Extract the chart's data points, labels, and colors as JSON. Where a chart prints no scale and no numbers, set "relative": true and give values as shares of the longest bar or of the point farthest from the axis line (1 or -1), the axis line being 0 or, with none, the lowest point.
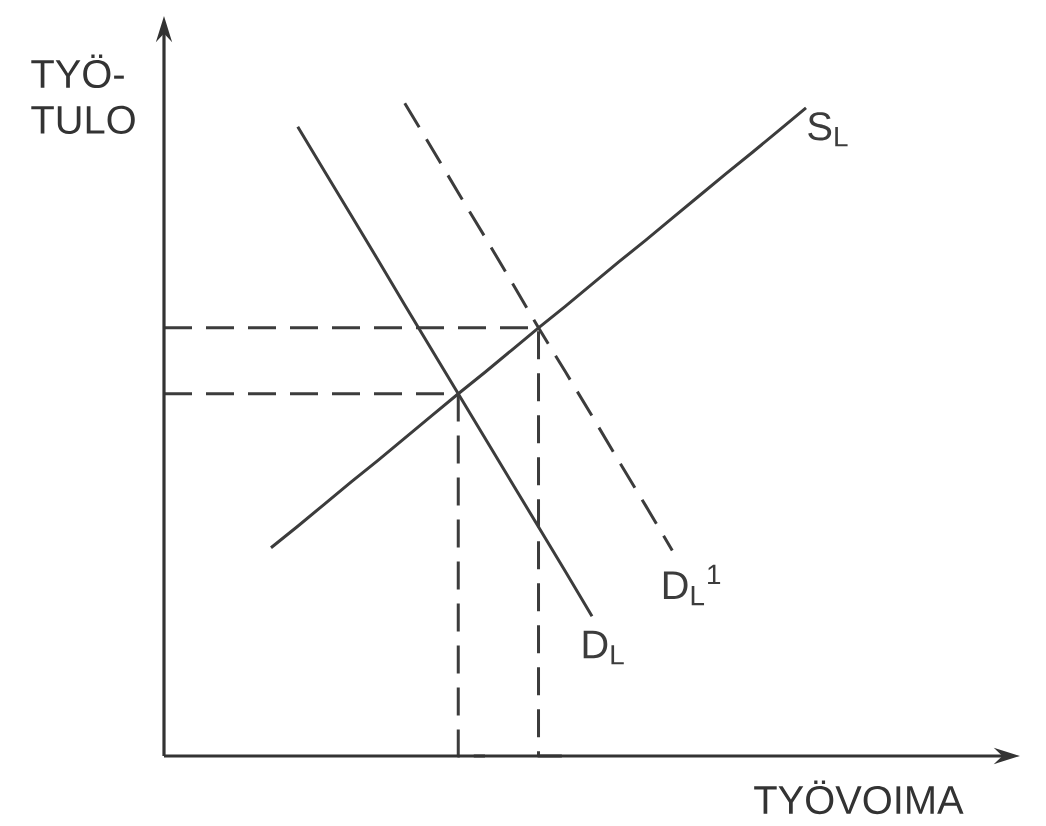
{
  "chart_data": {
    "type": "line",
    "relative": true,
    "xlabel": "TYÖVOIMA",
    "ylabel": "TYÖ-TULO",
    "marker": "none",
    "categories": [
      null,
      null,
      null,
      null,
      null,
      null,
      null,
      null,
      null,
      null,
      null,
      null,
      null,
      null,
      null,
      null,
      null,
      null,
      null,
      null,
      null,
      null,
      null,
      null,
      null,
      null,
      null,
      null,
      null,
      null,
      null,
      null
    ],
    "series": [
      {
        "name": "S$_{L}$",
        "color": "#3c3c3c",
        "line_style": "solid",
        "values": [
          null,
          null,
          null,
          null,
          0.319,
          0.352,
          0.386,
          0.42,
          0.453,
          0.487,
          0.521,
          0.555,
          0.588,
          0.622,
          0.656,
          0.689,
          0.723,
          0.757,
          0.79,
          0.824,
          0.858,
          0.892,
          0.925,
          0.959,
          0.993,
          null,
          null,
          null,
          null,
          null,
          null,
          null
        ]
      },
      {
        "name": "D$_{L}$",
        "color": "#3c3c3c",
        "line_style": "solid",
        "values": [
          null,
          null,
          null,
          null,
          null,
          0.964,
          0.896,
          0.828,
          0.76,
          0.691,
          0.623,
          0.555,
          0.487,
          0.419,
          0.351,
          0.283,
          0.214,
          null,
          null,
          null,
          null,
          null,
          null,
          null,
          null,
          null,
          null,
          null,
          null,
          null,
          null,
          null
        ]
      },
      {
        "name": "D$_{L}$$^{1}$",
        "color": "#3c3c3c",
        "line_style": "dashed",
        "values": [
          null,
          null,
          null,
          null,
          null,
          null,
          null,
          null,
          null,
          1,
          0.932,
          0.863,
          0.795,
          0.726,
          0.656,
          0.589,
          0.521,
          0.452,
          0.384,
          0.315,
          null,
          null,
          null,
          null,
          null,
          null,
          null,
          null,
          null,
          null,
          null,
          null
        ]
      },
      {
        "type": "step",
        "color": "#3c3c3c",
        "line_style": "dashed",
        "values": [
          0.555,
          0.555,
          0.555,
          0.555,
          0.555,
          0.555,
          0.555,
          0.555,
          0.555,
          0.555,
          0.555,
          0.555,
          0,
          null,
          null,
          null,
          null,
          null,
          null,
          null,
          null,
          null,
          null,
          null,
          null,
          null,
          null,
          null,
          null,
          null,
          null,
          null
        ]
      },
      {
        "type": "step",
        "color": "#3c3c3c",
        "line_style": "dashed",
        "values": [
          0.656,
          0.656,
          0.656,
          0.656,
          0.656,
          0.656,
          0.656,
          0.656,
          0.656,
          0.656,
          0.656,
          0.656,
          0.656,
          0.656,
          0.656,
          0,
          null,
          null,
          null,
          null,
          null,
          null,
          null,
          null,
          null,
          null,
          null,
          null,
          null,
          null,
          null,
          null
        ]
      }
    ]
  }
}
